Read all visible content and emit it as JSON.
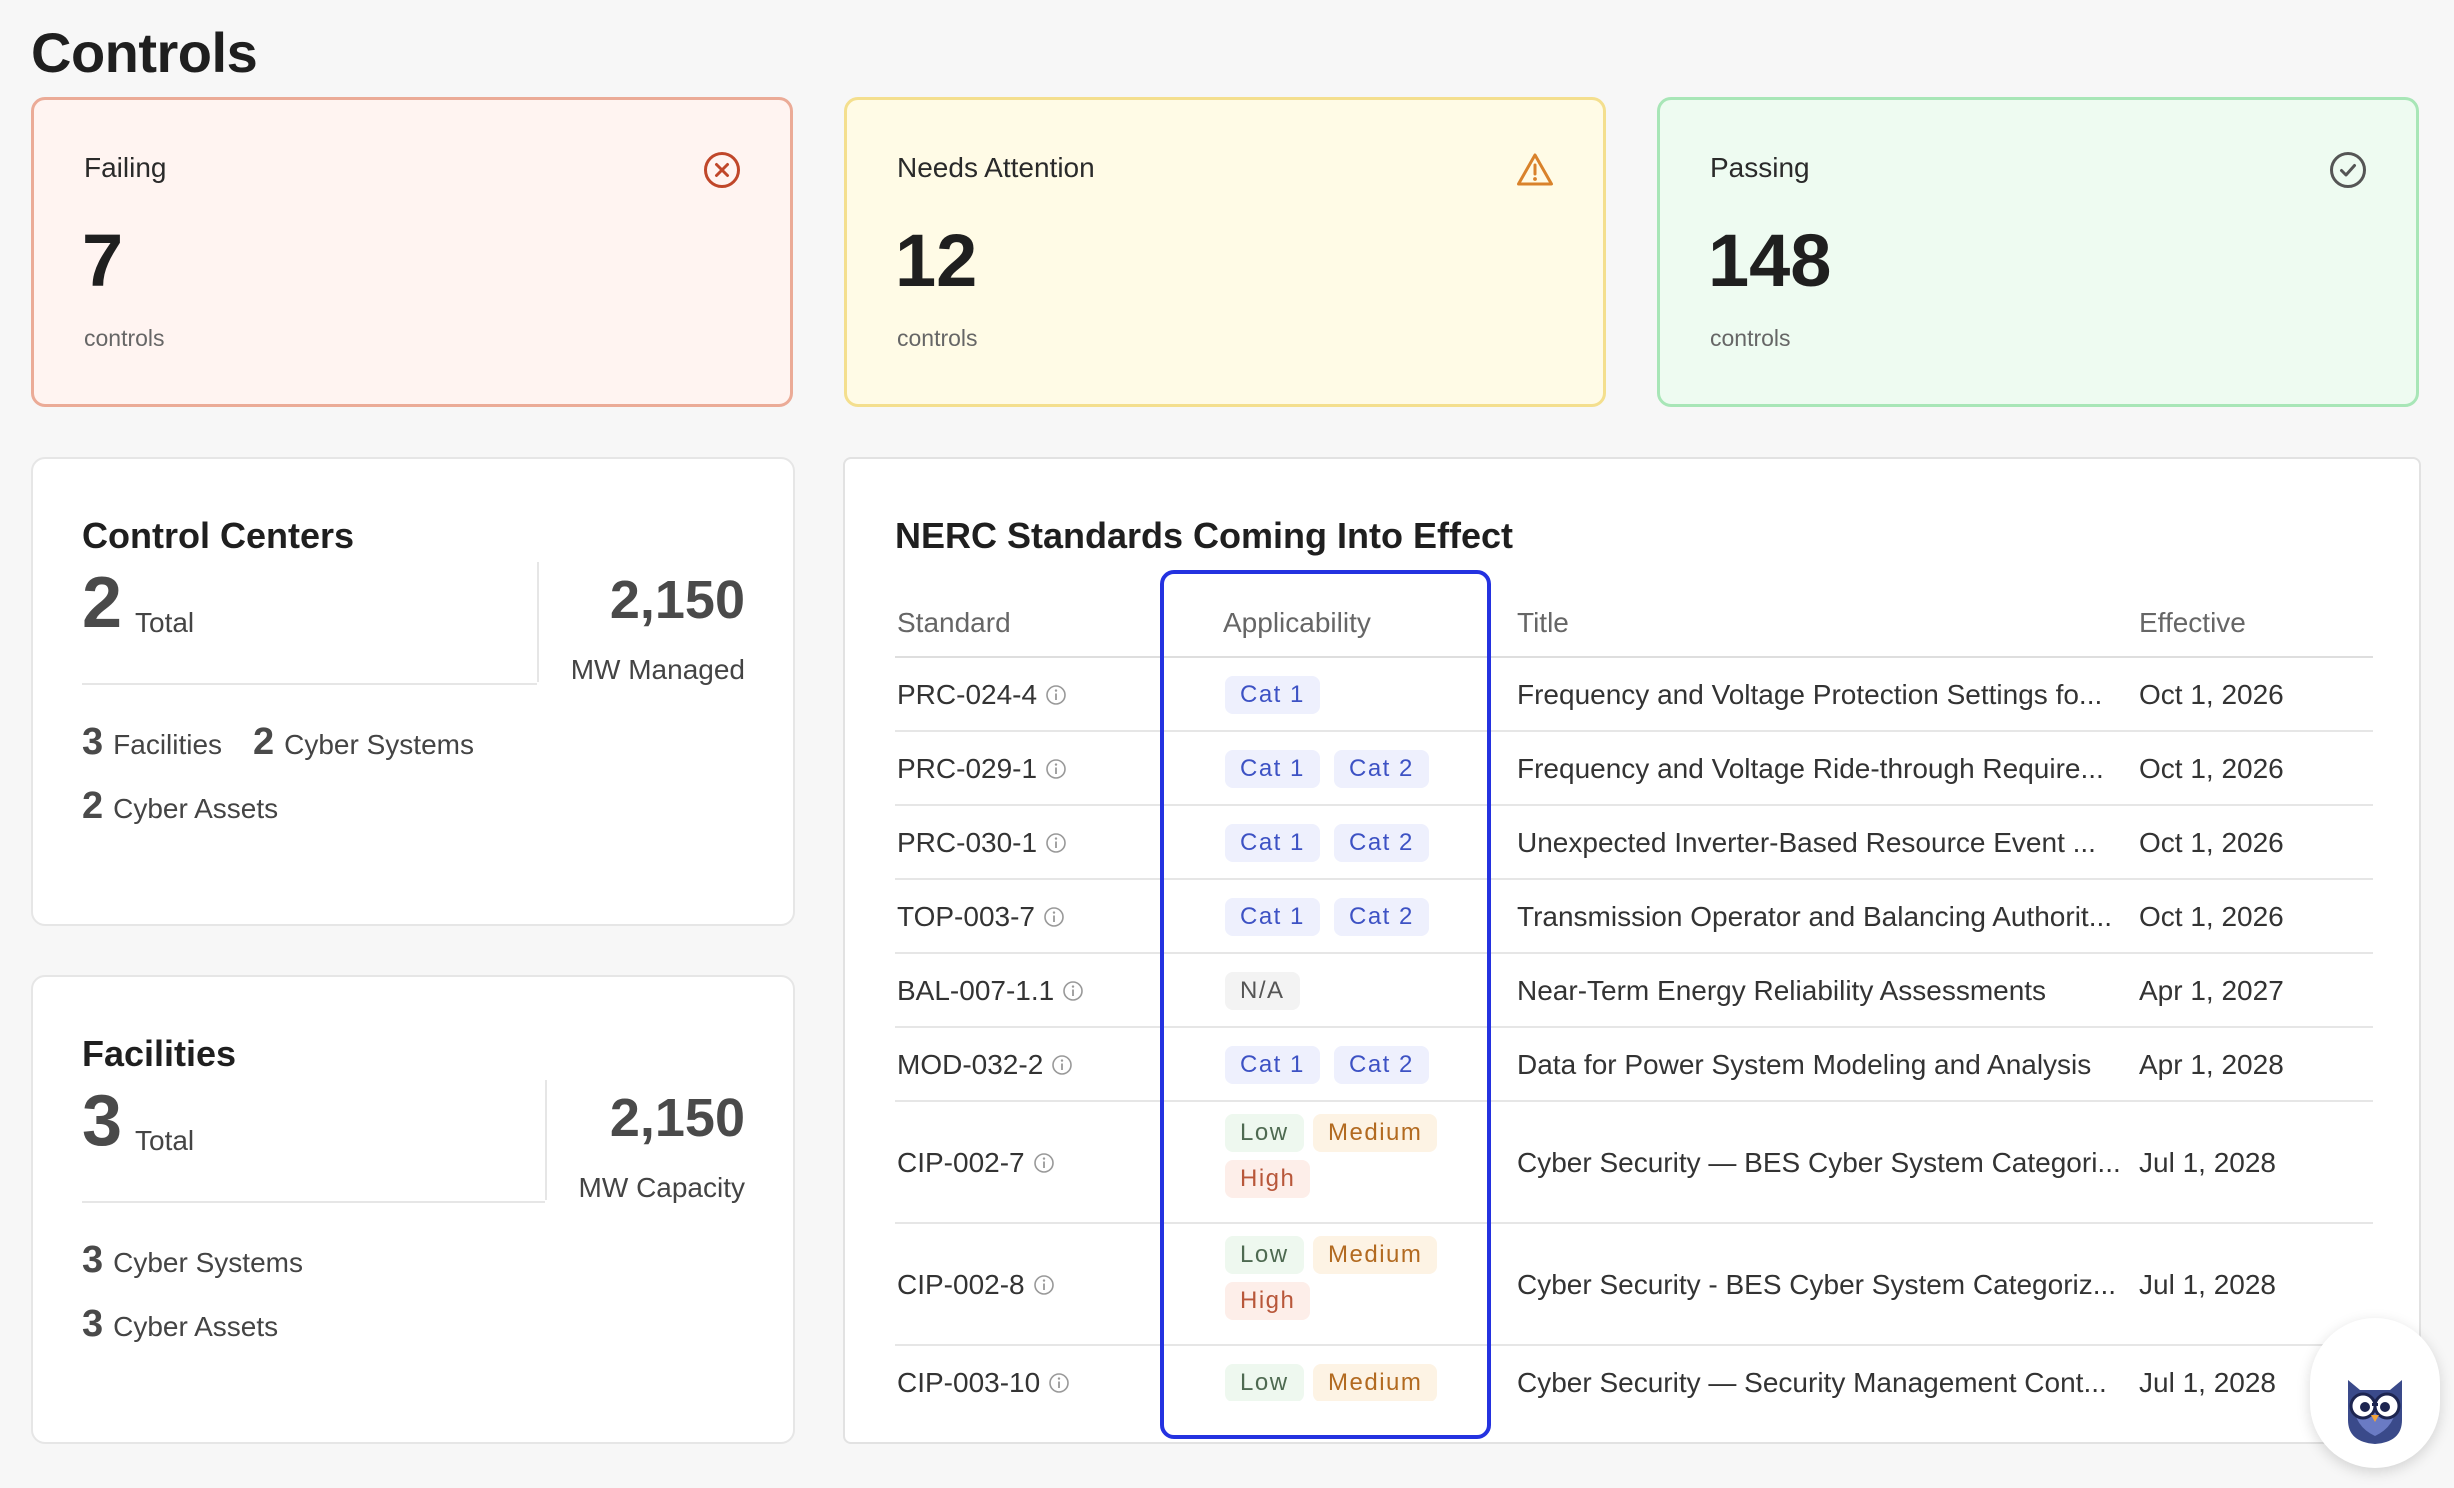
{
  "page_title": "Controls",
  "status_cards": {
    "failing": {
      "label": "Failing",
      "count": "7",
      "unit": "controls",
      "icon": "x-circle-icon",
      "color": "#c0472a"
    },
    "attention": {
      "label": "Needs Attention",
      "count": "12",
      "unit": "controls",
      "icon": "warning-triangle-icon",
      "color": "#d9822b"
    },
    "passing": {
      "label": "Passing",
      "count": "148",
      "unit": "controls",
      "icon": "check-circle-icon",
      "color": "#555555"
    }
  },
  "control_centers": {
    "title": "Control Centers",
    "total_value": "2",
    "total_label": "Total",
    "right_value": "2,150",
    "right_label": "MW Managed",
    "stats": [
      {
        "value": "3",
        "label": "Facilities"
      },
      {
        "value": "2",
        "label": "Cyber Systems"
      },
      {
        "value": "2",
        "label": "Cyber Assets"
      }
    ]
  },
  "facilities": {
    "title": "Facilities",
    "total_value": "3",
    "total_label": "Total",
    "right_value": "2,150",
    "right_label": "MW Capacity",
    "stats": [
      {
        "value": "3",
        "label": "Cyber Systems"
      },
      {
        "value": "3",
        "label": "Cyber Assets"
      }
    ]
  },
  "nerc": {
    "title": "NERC Standards Coming Into Effect",
    "headers": {
      "standard": "Standard",
      "applicability": "Applicability",
      "title": "Title",
      "effective": "Effective"
    },
    "rows": [
      {
        "standard": "PRC-024-4",
        "chips": [
          "Cat 1"
        ],
        "title": "Frequency and Voltage Protection Settings fo...",
        "effective": "Oct 1, 2026"
      },
      {
        "standard": "PRC-029-1",
        "chips": [
          "Cat 1",
          "Cat 2"
        ],
        "title": "Frequency and Voltage Ride-through Require...",
        "effective": "Oct 1, 2026"
      },
      {
        "standard": "PRC-030-1",
        "chips": [
          "Cat 1",
          "Cat 2"
        ],
        "title": "Unexpected Inverter-Based Resource Event ...",
        "effective": "Oct 1, 2026"
      },
      {
        "standard": "TOP-003-7",
        "chips": [
          "Cat 1",
          "Cat 2"
        ],
        "title": "Transmission Operator and Balancing Authorit...",
        "effective": "Oct 1, 2026"
      },
      {
        "standard": "BAL-007-1.1",
        "chips": [
          "N/A"
        ],
        "title": "Near-Term Energy Reliability Assessments",
        "effective": "Apr 1, 2027"
      },
      {
        "standard": "MOD-032-2",
        "chips": [
          "Cat 1",
          "Cat 2"
        ],
        "title": "Data for Power System Modeling and Analysis",
        "effective": "Apr 1, 2028"
      },
      {
        "standard": "CIP-002-7",
        "chips": [
          "Low",
          "Medium",
          "High"
        ],
        "title": "Cyber Security — BES Cyber System Categori...",
        "effective": "Jul 1, 2028"
      },
      {
        "standard": "CIP-002-8",
        "chips": [
          "Low",
          "Medium",
          "High"
        ],
        "title": "Cyber Security - BES Cyber System Categoriz...",
        "effective": "Jul 1, 2028"
      },
      {
        "standard": "CIP-003-10",
        "chips": [
          "Low",
          "Medium"
        ],
        "title": "Cyber Security — Security Management Cont...",
        "effective": "Jul 1, 2028"
      }
    ]
  },
  "assistant": {
    "icon": "owl-assistant-icon"
  }
}
